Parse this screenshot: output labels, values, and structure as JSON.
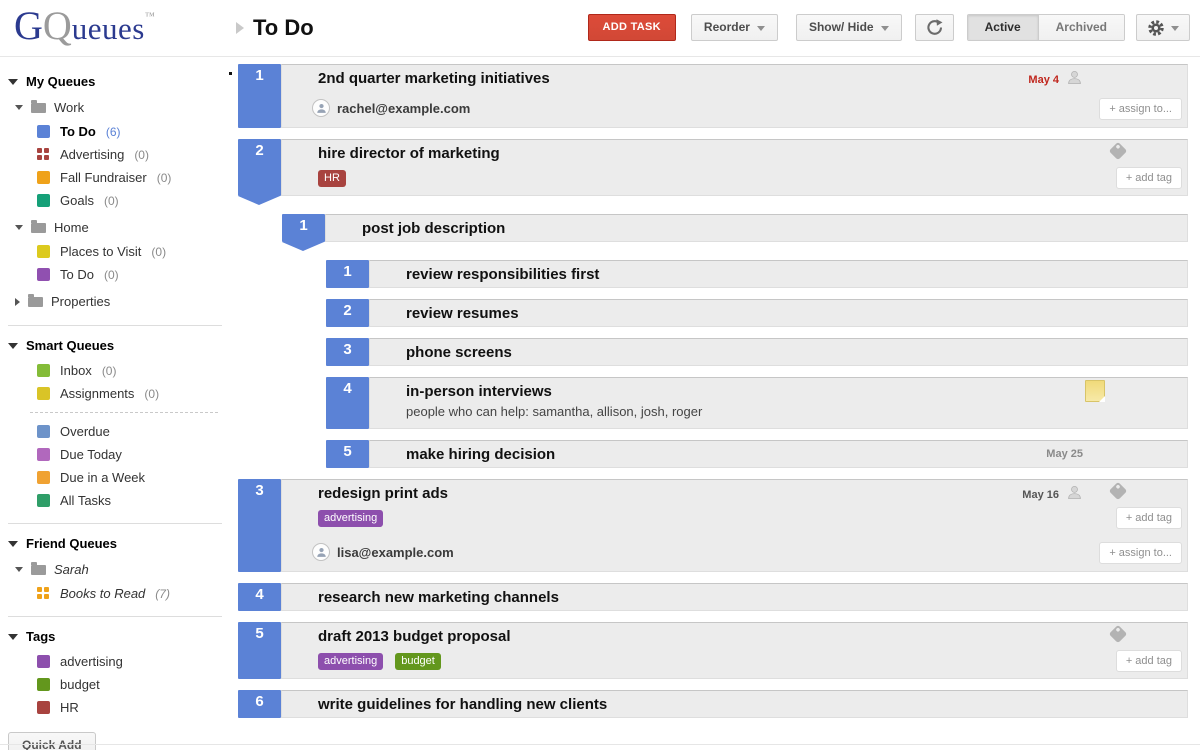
{
  "header": {
    "logo": {
      "g": "G",
      "q": "Q",
      "rest": "ueues",
      "tm": "™"
    },
    "title": "To Do",
    "add_task": "ADD TASK",
    "reorder": "Reorder",
    "show_hide": "Show/ Hide",
    "active": "Active",
    "archived": "Archived",
    "icons": {
      "refresh": "refresh-icon",
      "settings": "gear-icon"
    }
  },
  "colors": {
    "tab_blue": "#5b82d6",
    "add_task_red": "#d14836",
    "overdue_red": "#c0271e",
    "row_bg": "#ececec"
  },
  "labels": {
    "add_tag": "+ add tag",
    "assign_to": "+ assign to..."
  },
  "sidebar": {
    "quick_add": "Quick Add",
    "sections": [
      {
        "title": "My Queues",
        "items": [
          {
            "type": "folder",
            "label": "Work",
            "expanded": true
          },
          {
            "type": "queue",
            "icon": "square",
            "color": "#5b82d6",
            "label": "To Do",
            "count": "(6)",
            "selected": true,
            "count_color": "#5b82d6"
          },
          {
            "type": "queue",
            "icon": "grid",
            "color": "#a8433f",
            "label": "Advertising",
            "count": "(0)"
          },
          {
            "type": "queue",
            "icon": "square",
            "color": "#efa21a",
            "label": "Fall Fundraiser",
            "count": "(0)"
          },
          {
            "type": "queue",
            "icon": "square",
            "color": "#15a078",
            "label": "Goals",
            "count": "(0)"
          },
          {
            "type": "folder",
            "label": "Home",
            "expanded": true
          },
          {
            "type": "queue",
            "icon": "square",
            "color": "#dcca1e",
            "label": "Places to Visit",
            "count": "(0)"
          },
          {
            "type": "queue",
            "icon": "square",
            "color": "#9050b0",
            "label": "To Do",
            "count": "(0)"
          },
          {
            "type": "folder",
            "label": "Properties",
            "expanded": false
          }
        ]
      },
      {
        "title": "Smart Queues",
        "items": [
          {
            "type": "queue",
            "icon": "square",
            "color": "#84bc38",
            "label": "Inbox",
            "count": "(0)"
          },
          {
            "type": "queue",
            "icon": "square",
            "color": "#d9c427",
            "label": "Assignments",
            "count": "(0)"
          },
          {
            "type": "dashed"
          },
          {
            "type": "queue",
            "icon": "square",
            "color": "#6d93c9",
            "label": "Overdue"
          },
          {
            "type": "queue",
            "icon": "square",
            "color": "#b168bd",
            "label": "Due Today"
          },
          {
            "type": "queue",
            "icon": "square",
            "color": "#f0a232",
            "label": "Due in a Week"
          },
          {
            "type": "queue",
            "icon": "square",
            "color": "#2f9e68",
            "label": "All Tasks"
          }
        ]
      },
      {
        "title": "Friend Queues",
        "items": [
          {
            "type": "folder",
            "label": "Sarah",
            "expanded": true,
            "italic": true
          },
          {
            "type": "queue",
            "icon": "grid",
            "color": "#efa21a",
            "label": "Books to Read",
            "count": "(7)",
            "italic": true
          }
        ]
      },
      {
        "title": "Tags",
        "items": [
          {
            "type": "queue",
            "icon": "square",
            "color": "#8d4fad",
            "label": "advertising"
          },
          {
            "type": "queue",
            "icon": "square",
            "color": "#63971d",
            "label": "budget"
          },
          {
            "type": "queue",
            "icon": "square",
            "color": "#a8433f",
            "label": "HR"
          }
        ]
      }
    ]
  },
  "tasks": [
    {
      "indent": 0,
      "number": "1",
      "title": "2nd quarter marketing initiatives",
      "bullet": true,
      "date": "May 4",
      "date_color": "#c0271e",
      "date_person_icon": true,
      "assignee": "rachel@example.com",
      "show_assign": true
    },
    {
      "indent": 0,
      "number": "2",
      "title": "hire director of marketing",
      "pointed": true,
      "tag_icon": true,
      "tags": [
        {
          "label": "HR",
          "color": "#a8433f"
        }
      ],
      "show_add_tag": true
    },
    {
      "indent": 1,
      "number": "1",
      "title": "post job description",
      "pointed": true
    },
    {
      "indent": 2,
      "number": "1",
      "title": "review responsibilities first"
    },
    {
      "indent": 2,
      "number": "2",
      "title": "review resumes"
    },
    {
      "indent": 2,
      "number": "3",
      "title": "phone screens"
    },
    {
      "indent": 2,
      "number": "4",
      "title": "in-person interviews",
      "note_icon": true,
      "description": "people who can help: samantha, allison, josh, roger"
    },
    {
      "indent": 2,
      "number": "5",
      "title": "make hiring decision",
      "date": "May 25",
      "date_color": "#8a8a8a"
    },
    {
      "indent": 0,
      "number": "3",
      "title": "redesign print ads",
      "date": "May 16",
      "date_color": "#555555",
      "date_person_icon": true,
      "tag_icon": true,
      "tags": [
        {
          "label": "advertising",
          "color": "#8d4fad"
        }
      ],
      "show_add_tag": true,
      "assignee": "lisa@example.com",
      "show_assign": true
    },
    {
      "indent": 0,
      "number": "4",
      "title": "research new marketing channels"
    },
    {
      "indent": 0,
      "number": "5",
      "title": "draft 2013 budget proposal",
      "tag_icon": true,
      "tags": [
        {
          "label": "advertising",
          "color": "#8d4fad"
        },
        {
          "label": "budget",
          "color": "#63971d"
        }
      ],
      "show_add_tag": true
    },
    {
      "indent": 0,
      "number": "6",
      "title": "write guidelines for handling new clients"
    }
  ]
}
